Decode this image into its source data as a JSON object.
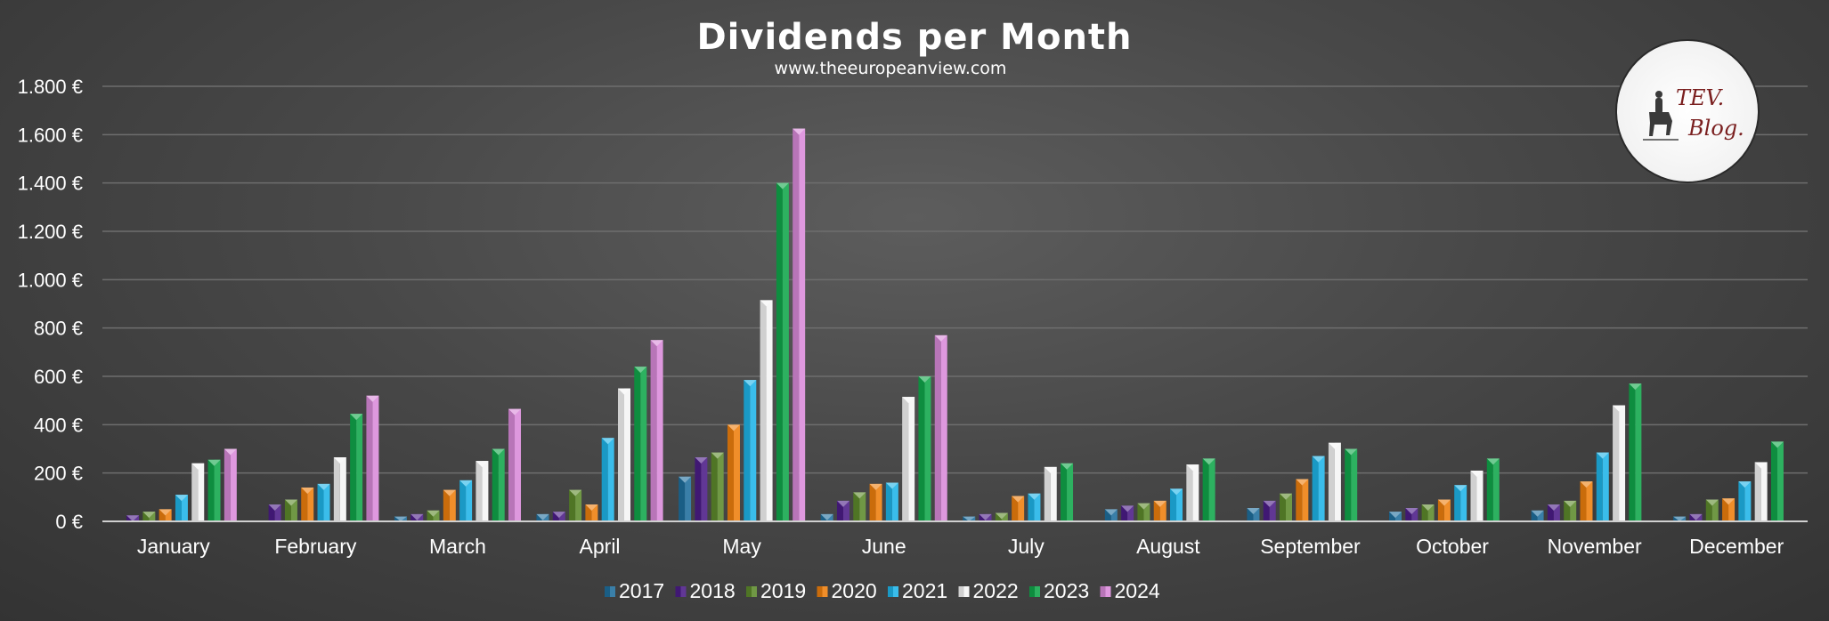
{
  "logo": {
    "line1": "TEV.",
    "line2": "Blog."
  },
  "chart_data": {
    "type": "bar",
    "title": "Dividends per Month",
    "subtitle": "www.theeuropeanview.com",
    "xlabel": "",
    "ylabel": "",
    "ylim": [
      0,
      1800
    ],
    "yticks": [
      0,
      200,
      400,
      600,
      800,
      1000,
      1200,
      1400,
      1600,
      1800
    ],
    "ytick_labels": [
      "0 €",
      "200 €",
      "400 €",
      "600 €",
      "800 €",
      "1.000 €",
      "1.200 €",
      "1.400 €",
      "1.600 €",
      "1.800 €"
    ],
    "grid": true,
    "legend_position": "bottom",
    "categories": [
      "January",
      "February",
      "March",
      "April",
      "May",
      "June",
      "July",
      "August",
      "September",
      "October",
      "November",
      "December"
    ],
    "series": [
      {
        "name": "2017",
        "color": "#1f6e9c",
        "values": [
          null,
          null,
          20,
          30,
          185,
          30,
          20,
          50,
          55,
          40,
          45,
          20
        ]
      },
      {
        "name": "2018",
        "color": "#4b1c87",
        "values": [
          25,
          70,
          30,
          40,
          265,
          85,
          30,
          65,
          85,
          55,
          70,
          30
        ]
      },
      {
        "name": "2019",
        "color": "#5d8a2c",
        "values": [
          40,
          90,
          45,
          130,
          285,
          120,
          35,
          75,
          115,
          70,
          85,
          90
        ]
      },
      {
        "name": "2020",
        "color": "#ee7f0d",
        "values": [
          50,
          140,
          130,
          70,
          400,
          155,
          105,
          85,
          175,
          90,
          165,
          95
        ]
      },
      {
        "name": "2021",
        "color": "#1fb4e8",
        "values": [
          110,
          155,
          170,
          345,
          585,
          160,
          115,
          135,
          270,
          150,
          285,
          165
        ]
      },
      {
        "name": "2022",
        "color": "#f5f5f5",
        "values": [
          240,
          265,
          250,
          550,
          915,
          515,
          225,
          235,
          325,
          210,
          480,
          245
        ]
      },
      {
        "name": "2023",
        "color": "#10a64a",
        "values": [
          255,
          445,
          300,
          640,
          1400,
          600,
          240,
          260,
          300,
          260,
          570,
          330
        ]
      },
      {
        "name": "2024",
        "color": "#d98ad9",
        "values": [
          300,
          520,
          465,
          750,
          1625,
          770,
          null,
          null,
          null,
          null,
          null,
          null
        ]
      }
    ]
  }
}
